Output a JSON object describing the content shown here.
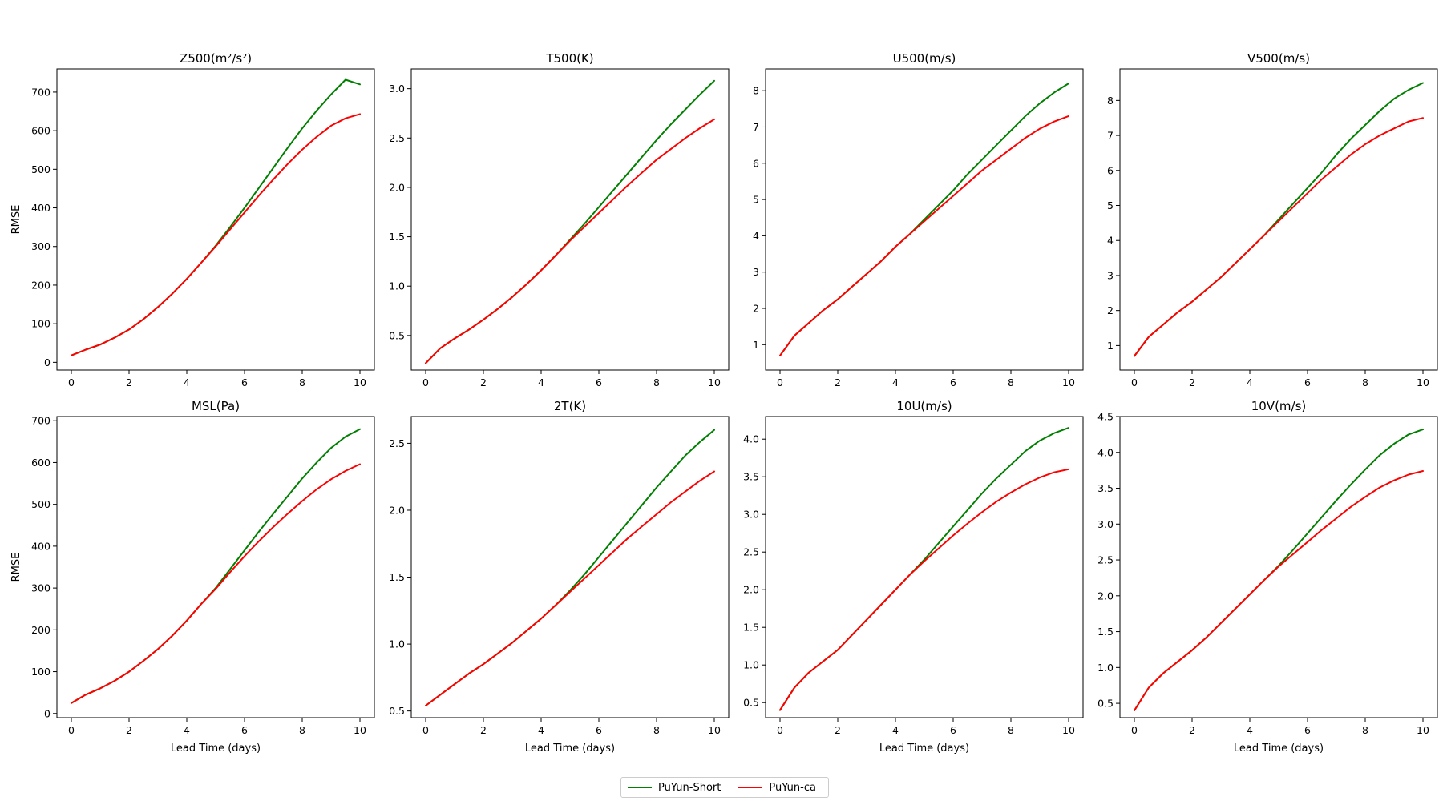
{
  "chart_data": [
    {
      "type": "line",
      "title": "Z500(m²/s²)",
      "xlabel": "",
      "ylabel": "RMSE",
      "xlim": [
        -0.5,
        10.5
      ],
      "ylim": [
        -20,
        760
      ],
      "xticks": [
        0,
        2,
        4,
        6,
        8,
        10
      ],
      "yticks": [
        0,
        100,
        200,
        300,
        400,
        500,
        600,
        700
      ],
      "x": [
        0,
        0.5,
        1,
        1.5,
        2,
        2.5,
        3,
        3.5,
        4,
        4.5,
        5,
        5.5,
        6,
        6.5,
        7,
        7.5,
        8,
        8.5,
        9,
        9.5,
        10
      ],
      "series": [
        {
          "name": "PuYun-Short",
          "color": "#008000",
          "values": [
            18,
            33,
            46,
            64,
            85,
            112,
            143,
            178,
            216,
            258,
            302,
            350,
            400,
            452,
            504,
            556,
            606,
            652,
            694,
            732,
            720
          ]
        },
        {
          "name": "PuYun-ca",
          "color": "#ff0000",
          "values": [
            18,
            33,
            46,
            64,
            85,
            112,
            143,
            178,
            216,
            258,
            300,
            344,
            388,
            432,
            474,
            514,
            551,
            584,
            613,
            632,
            643
          ]
        }
      ]
    },
    {
      "type": "line",
      "title": "T500(K)",
      "xlabel": "",
      "ylabel": "",
      "xlim": [
        -0.5,
        10.5
      ],
      "ylim": [
        0.15,
        3.2
      ],
      "xticks": [
        0,
        2,
        4,
        6,
        8,
        10
      ],
      "yticks": [
        0.5,
        1.0,
        1.5,
        2.0,
        2.5,
        3.0
      ],
      "x": [
        0,
        0.5,
        1,
        1.5,
        2,
        2.5,
        3,
        3.5,
        4,
        4.5,
        5,
        5.5,
        6,
        6.5,
        7,
        7.5,
        8,
        8.5,
        9,
        9.5,
        10
      ],
      "series": [
        {
          "name": "PuYun-Short",
          "color": "#008000",
          "values": [
            0.22,
            0.37,
            0.47,
            0.56,
            0.66,
            0.77,
            0.89,
            1.02,
            1.16,
            1.31,
            1.47,
            1.63,
            1.8,
            1.97,
            2.14,
            2.31,
            2.48,
            2.64,
            2.79,
            2.94,
            3.08
          ]
        },
        {
          "name": "PuYun-ca",
          "color": "#ff0000",
          "values": [
            0.22,
            0.37,
            0.47,
            0.56,
            0.66,
            0.77,
            0.89,
            1.02,
            1.16,
            1.31,
            1.46,
            1.6,
            1.74,
            1.88,
            2.02,
            2.15,
            2.28,
            2.39,
            2.5,
            2.6,
            2.69
          ]
        }
      ]
    },
    {
      "type": "line",
      "title": "U500(m/s)",
      "xlabel": "",
      "ylabel": "",
      "xlim": [
        -0.5,
        10.5
      ],
      "ylim": [
        0.3,
        8.6
      ],
      "xticks": [
        0,
        2,
        4,
        6,
        8,
        10
      ],
      "yticks": [
        1,
        2,
        3,
        4,
        5,
        6,
        7,
        8
      ],
      "x": [
        0,
        0.5,
        1,
        1.5,
        2,
        2.5,
        3,
        3.5,
        4,
        4.5,
        5,
        5.5,
        6,
        6.5,
        7,
        7.5,
        8,
        8.5,
        9,
        9.5,
        10
      ],
      "series": [
        {
          "name": "PuYun-Short",
          "color": "#008000",
          "values": [
            0.7,
            1.25,
            1.6,
            1.95,
            2.25,
            2.6,
            2.95,
            3.3,
            3.7,
            4.05,
            4.45,
            4.85,
            5.25,
            5.7,
            6.1,
            6.5,
            6.9,
            7.3,
            7.65,
            7.95,
            8.2
          ]
        },
        {
          "name": "PuYun-ca",
          "color": "#ff0000",
          "values": [
            0.7,
            1.25,
            1.6,
            1.95,
            2.25,
            2.6,
            2.95,
            3.3,
            3.7,
            4.05,
            4.4,
            4.75,
            5.1,
            5.45,
            5.8,
            6.1,
            6.4,
            6.7,
            6.95,
            7.15,
            7.3
          ]
        }
      ]
    },
    {
      "type": "line",
      "title": "V500(m/s)",
      "xlabel": "",
      "ylabel": "",
      "xlim": [
        -0.5,
        10.5
      ],
      "ylim": [
        0.3,
        8.9
      ],
      "xticks": [
        0,
        2,
        4,
        6,
        8,
        10
      ],
      "yticks": [
        1,
        2,
        3,
        4,
        5,
        6,
        7,
        8
      ],
      "x": [
        0,
        0.5,
        1,
        1.5,
        2,
        2.5,
        3,
        3.5,
        4,
        4.5,
        5,
        5.5,
        6,
        6.5,
        7,
        7.5,
        8,
        8.5,
        9,
        9.5,
        10
      ],
      "series": [
        {
          "name": "PuYun-Short",
          "color": "#008000",
          "values": [
            0.7,
            1.25,
            1.6,
            1.95,
            2.25,
            2.6,
            2.95,
            3.35,
            3.75,
            4.15,
            4.6,
            5.05,
            5.5,
            5.95,
            6.45,
            6.9,
            7.3,
            7.7,
            8.05,
            8.3,
            8.5
          ]
        },
        {
          "name": "PuYun-ca",
          "color": "#ff0000",
          "values": [
            0.7,
            1.25,
            1.6,
            1.95,
            2.25,
            2.6,
            2.95,
            3.35,
            3.75,
            4.15,
            4.55,
            4.95,
            5.35,
            5.75,
            6.1,
            6.45,
            6.75,
            7.0,
            7.2,
            7.4,
            7.5
          ]
        }
      ]
    },
    {
      "type": "line",
      "title": "MSL(Pa)",
      "xlabel": "Lead Time (days)",
      "ylabel": "RMSE",
      "xlim": [
        -0.5,
        10.5
      ],
      "ylim": [
        -10,
        710
      ],
      "xticks": [
        0,
        2,
        4,
        6,
        8,
        10
      ],
      "yticks": [
        0,
        100,
        200,
        300,
        400,
        500,
        600,
        700
      ],
      "x": [
        0,
        0.5,
        1,
        1.5,
        2,
        2.5,
        3,
        3.5,
        4,
        4.5,
        5,
        5.5,
        6,
        6.5,
        7,
        7.5,
        8,
        8.5,
        9,
        9.5,
        10
      ],
      "series": [
        {
          "name": "PuYun-Short",
          "color": "#008000",
          "values": [
            25,
            45,
            60,
            78,
            100,
            126,
            154,
            186,
            222,
            262,
            300,
            345,
            390,
            435,
            478,
            520,
            562,
            600,
            635,
            662,
            680
          ]
        },
        {
          "name": "PuYun-ca",
          "color": "#ff0000",
          "values": [
            25,
            45,
            60,
            78,
            100,
            126,
            154,
            186,
            222,
            262,
            298,
            338,
            376,
            412,
            446,
            478,
            508,
            536,
            560,
            580,
            596
          ]
        }
      ]
    },
    {
      "type": "line",
      "title": "2T(K)",
      "xlabel": "Lead Time (days)",
      "ylabel": "",
      "xlim": [
        -0.5,
        10.5
      ],
      "ylim": [
        0.45,
        2.7
      ],
      "xticks": [
        0,
        2,
        4,
        6,
        8,
        10
      ],
      "yticks": [
        0.5,
        1.0,
        1.5,
        2.0,
        2.5
      ],
      "x": [
        0,
        0.5,
        1,
        1.5,
        2,
        2.5,
        3,
        3.5,
        4,
        4.5,
        5,
        5.5,
        6,
        6.5,
        7,
        7.5,
        8,
        8.5,
        9,
        9.5,
        10
      ],
      "series": [
        {
          "name": "PuYun-Short",
          "color": "#008000",
          "values": [
            0.54,
            0.62,
            0.7,
            0.78,
            0.85,
            0.93,
            1.01,
            1.1,
            1.19,
            1.29,
            1.4,
            1.52,
            1.65,
            1.78,
            1.91,
            2.04,
            2.17,
            2.29,
            2.41,
            2.51,
            2.6
          ]
        },
        {
          "name": "PuYun-ca",
          "color": "#ff0000",
          "values": [
            0.54,
            0.62,
            0.7,
            0.78,
            0.85,
            0.93,
            1.01,
            1.1,
            1.19,
            1.29,
            1.39,
            1.49,
            1.59,
            1.69,
            1.79,
            1.88,
            1.97,
            2.06,
            2.14,
            2.22,
            2.29
          ]
        }
      ]
    },
    {
      "type": "line",
      "title": "10U(m/s)",
      "xlabel": "Lead Time (days)",
      "ylabel": "",
      "xlim": [
        -0.5,
        10.5
      ],
      "ylim": [
        0.3,
        4.3
      ],
      "xticks": [
        0,
        2,
        4,
        6,
        8,
        10
      ],
      "yticks": [
        0.5,
        1.0,
        1.5,
        2.0,
        2.5,
        3.0,
        3.5,
        4.0
      ],
      "x": [
        0,
        0.5,
        1,
        1.5,
        2,
        2.5,
        3,
        3.5,
        4,
        4.5,
        5,
        5.5,
        6,
        6.5,
        7,
        7.5,
        8,
        8.5,
        9,
        9.5,
        10
      ],
      "series": [
        {
          "name": "PuYun-Short",
          "color": "#008000",
          "values": [
            0.4,
            0.7,
            0.9,
            1.05,
            1.2,
            1.4,
            1.6,
            1.8,
            2.0,
            2.2,
            2.4,
            2.62,
            2.84,
            3.06,
            3.28,
            3.48,
            3.66,
            3.84,
            3.98,
            4.08,
            4.15
          ]
        },
        {
          "name": "PuYun-ca",
          "color": "#ff0000",
          "values": [
            0.4,
            0.7,
            0.9,
            1.05,
            1.2,
            1.4,
            1.6,
            1.8,
            2.0,
            2.2,
            2.38,
            2.55,
            2.72,
            2.88,
            3.03,
            3.17,
            3.29,
            3.4,
            3.49,
            3.56,
            3.6
          ]
        }
      ]
    },
    {
      "type": "line",
      "title": "10V(m/s)",
      "xlabel": "Lead Time (days)",
      "ylabel": "",
      "xlim": [
        -0.5,
        10.5
      ],
      "ylim": [
        0.3,
        4.5
      ],
      "xticks": [
        0,
        2,
        4,
        6,
        8,
        10
      ],
      "yticks": [
        0.5,
        1.0,
        1.5,
        2.0,
        2.5,
        3.0,
        3.5,
        4.0,
        4.5
      ],
      "x": [
        0,
        0.5,
        1,
        1.5,
        2,
        2.5,
        3,
        3.5,
        4,
        4.5,
        5,
        5.5,
        6,
        6.5,
        7,
        7.5,
        8,
        8.5,
        9,
        9.5,
        10
      ],
      "series": [
        {
          "name": "PuYun-Short",
          "color": "#008000",
          "values": [
            0.4,
            0.72,
            0.92,
            1.08,
            1.24,
            1.42,
            1.62,
            1.82,
            2.02,
            2.22,
            2.42,
            2.64,
            2.87,
            3.1,
            3.33,
            3.55,
            3.76,
            3.96,
            4.12,
            4.25,
            4.32
          ]
        },
        {
          "name": "PuYun-ca",
          "color": "#ff0000",
          "values": [
            0.4,
            0.72,
            0.92,
            1.08,
            1.24,
            1.42,
            1.62,
            1.82,
            2.02,
            2.22,
            2.41,
            2.58,
            2.75,
            2.92,
            3.08,
            3.24,
            3.38,
            3.51,
            3.61,
            3.69,
            3.74
          ]
        }
      ]
    }
  ],
  "legend": {
    "items": [
      {
        "label": "PuYun-Short",
        "color": "#008000"
      },
      {
        "label": "PuYun-ca",
        "color": "#ff0000"
      }
    ]
  }
}
